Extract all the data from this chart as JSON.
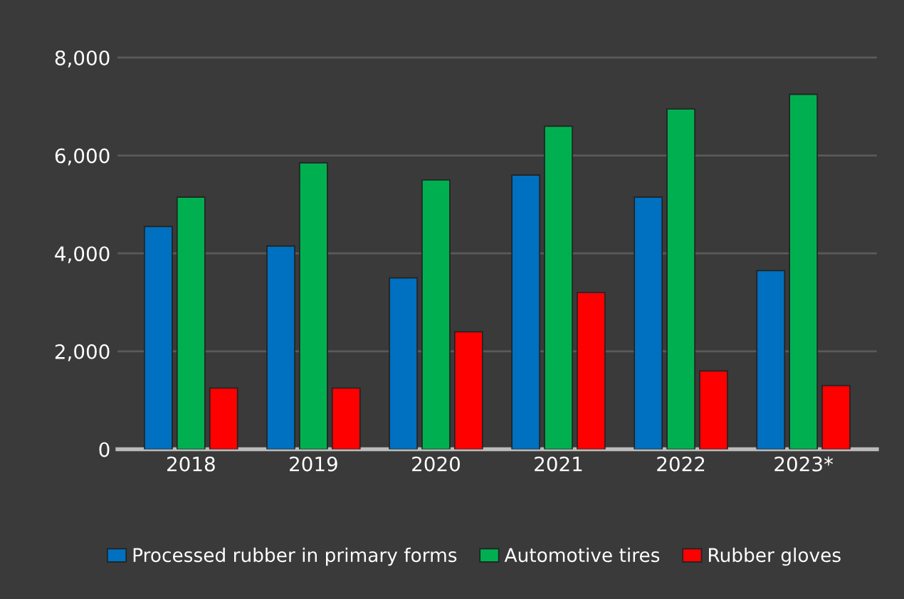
{
  "chart_data": {
    "type": "bar",
    "categories": [
      "2018",
      "2019",
      "2020",
      "2021",
      "2022",
      "2023*"
    ],
    "series": [
      {
        "name": "Processed rubber in primary forms",
        "color": "#0070c0",
        "values": [
          4550,
          4150,
          3500,
          5600,
          5150,
          3650
        ]
      },
      {
        "name": "Automotive tires",
        "color": "#00b050",
        "values": [
          5150,
          5850,
          5500,
          6600,
          6950,
          7250
        ]
      },
      {
        "name": "Rubber gloves",
        "color": "#ff0000",
        "values": [
          1250,
          1250,
          2400,
          3200,
          1600,
          1300
        ]
      }
    ],
    "ylim": [
      0,
      8000
    ],
    "yticks": [
      {
        "value": 0,
        "label": "0"
      },
      {
        "value": 2000,
        "label": "2,000"
      },
      {
        "value": 4000,
        "label": "4,000"
      },
      {
        "value": 6000,
        "label": "6,000"
      },
      {
        "value": 8000,
        "label": "8,000"
      }
    ],
    "grid": "y",
    "legend": "bottom"
  }
}
